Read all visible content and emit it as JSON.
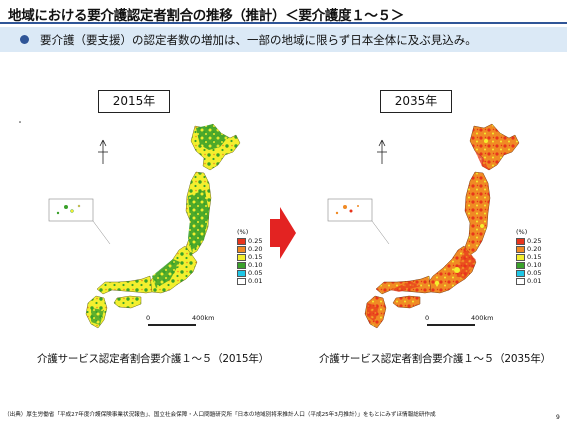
{
  "header": {
    "title": "地域における要介護認定者割合の推移（推計）＜要介護度１～５＞",
    "bullet": "要介護（要支援）の認定者数の増加は、一部の地域に限らず日本全体に及ぶ見込み。"
  },
  "maps": [
    {
      "year_label": "2015年",
      "caption": "介護サービス認定者割合要介護１～５（2015年）",
      "dominant": "yellow"
    },
    {
      "year_label": "2035年",
      "caption": "介護サービス認定者割合要介護１～５（2035年）",
      "dominant": "orange"
    }
  ],
  "legend": {
    "unit": "(%)",
    "items": [
      {
        "label": "0.25",
        "color": "#e8341c"
      },
      {
        "label": "0.20",
        "color": "#f08a24"
      },
      {
        "label": "0.15",
        "color": "#f3ef2e"
      },
      {
        "label": "0.10",
        "color": "#3aa12b"
      },
      {
        "label": "0.05",
        "color": "#1fc7e6"
      },
      {
        "label": "0.01",
        "color": "#ffffff"
      }
    ]
  },
  "scale": {
    "start": "0",
    "end": "400km"
  },
  "source": "（出典）厚生労働省「平成27年度介護保険事業状況報告」、国立社会保障・人口問題研究所「日本の地域別将来推計人口（平成25年3月推計）」をもとにみずほ情報総研作成",
  "page_number": "9",
  "colors": {
    "accent": "#2f5597",
    "banner_bg": "#dbe9f6",
    "arrow": "#e32322",
    "yellow": "#f3ef2e",
    "green": "#3aa12b",
    "orange": "#f08a24",
    "red": "#e8341c"
  },
  "icons": [
    "north-arrow-icon",
    "right-arrow-icon"
  ]
}
